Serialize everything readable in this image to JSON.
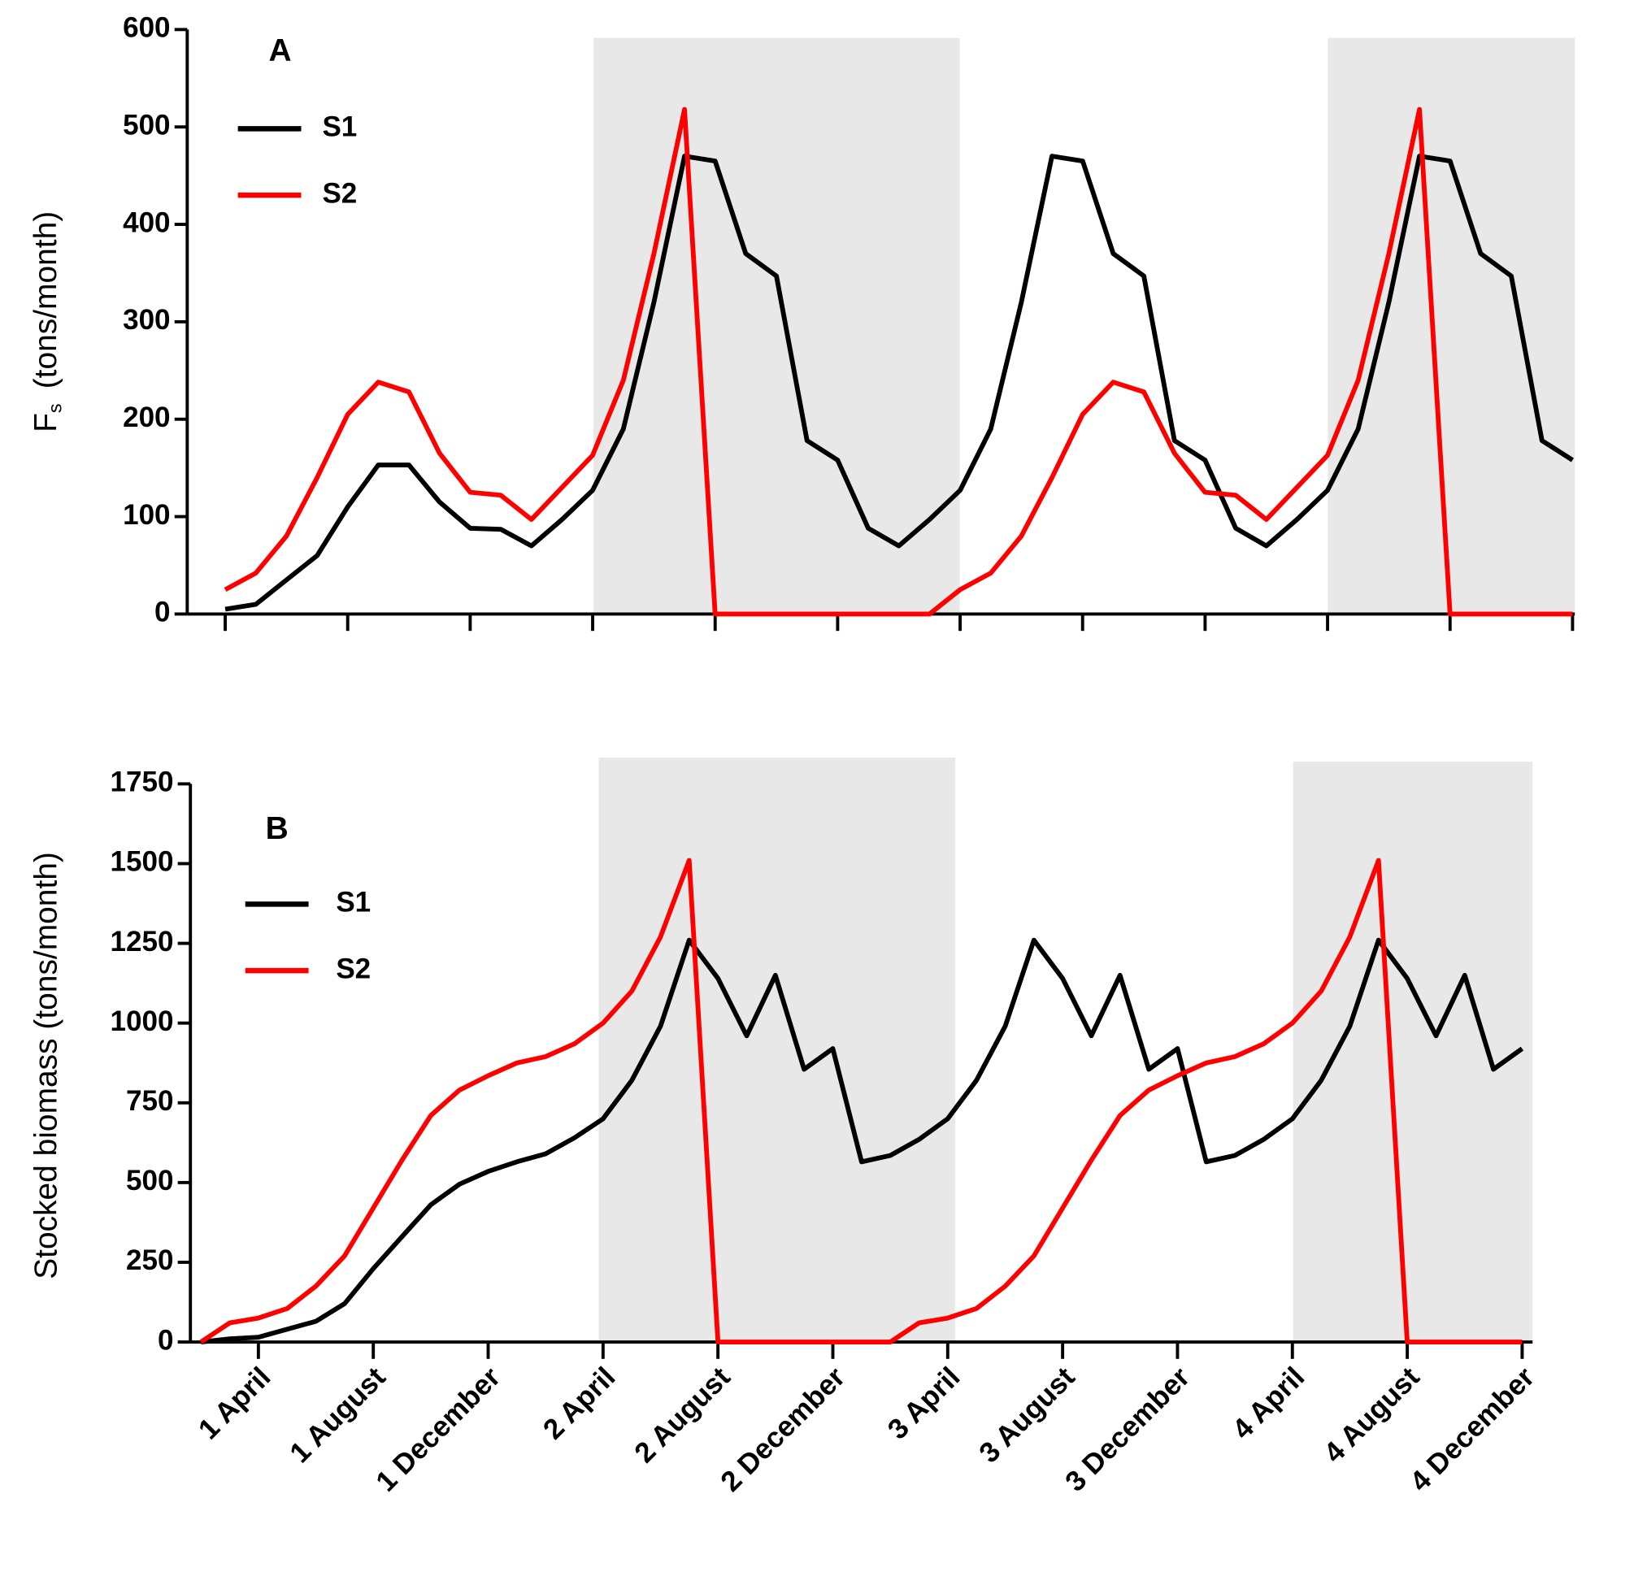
{
  "chart_data": [
    {
      "type": "line",
      "panel": "A",
      "ylabel": "F",
      "ylabel_sub": "s",
      "ylabel_rest": "(tons/month)",
      "ylim": [
        0,
        600
      ],
      "yticks": [
        0,
        100,
        200,
        300,
        400,
        500,
        600
      ],
      "series": [
        {
          "name": "S1",
          "color": "#000000",
          "values": [
            5,
            10,
            35,
            60,
            110,
            153,
            153,
            115,
            88,
            87,
            70,
            97,
            127,
            190,
            320,
            470,
            465,
            370,
            347,
            178,
            158,
            88,
            70,
            97,
            127,
            190,
            320,
            470,
            465,
            370,
            347,
            178,
            158,
            88,
            70,
            97,
            127,
            190,
            320,
            470,
            465,
            370,
            347,
            178,
            158
          ]
        },
        {
          "name": "S2",
          "color": "#ff0000",
          "values": [
            25,
            42,
            80,
            140,
            205,
            238,
            228,
            165,
            125,
            122,
            97,
            130,
            163,
            240,
            370,
            518,
            0,
            0,
            0,
            0,
            0,
            0,
            0,
            0,
            25,
            42,
            80,
            140,
            205,
            238,
            228,
            165,
            125,
            122,
            97,
            130,
            163,
            240,
            370,
            518,
            0,
            0,
            0,
            0,
            0
          ]
        }
      ]
    },
    {
      "type": "line",
      "panel": "B",
      "ylabel": "Stocked biomass (tons/month)",
      "ylim": [
        0,
        1750
      ],
      "yticks": [
        0,
        250,
        500,
        750,
        1000,
        1250,
        1500,
        1750
      ],
      "categories": [
        null,
        null,
        "1 April",
        null,
        null,
        null,
        "1 August",
        null,
        null,
        null,
        "1 December",
        null,
        null,
        null,
        "2 April",
        null,
        null,
        null,
        "2 August",
        null,
        null,
        null,
        "2 December",
        null,
        null,
        null,
        "3 April",
        null,
        null,
        null,
        "3 August",
        null,
        null,
        null,
        "3 December",
        null,
        null,
        null,
        "4 April",
        null,
        null,
        null,
        "4 August",
        null,
        null,
        null,
        "4 December"
      ],
      "series": [
        {
          "name": "S1",
          "color": "#000000",
          "values": [
            0,
            10,
            15,
            40,
            65,
            120,
            230,
            330,
            430,
            495,
            535,
            565,
            590,
            640,
            700,
            820,
            990,
            1260,
            1140,
            960,
            1150,
            855,
            920,
            565,
            585,
            635,
            700,
            820,
            990,
            1260,
            1140,
            960,
            1150,
            855,
            920,
            565,
            585,
            635,
            700,
            820,
            990,
            1260,
            1140,
            960,
            1150,
            855,
            920
          ]
        },
        {
          "name": "S2",
          "color": "#ff0000",
          "values": [
            0,
            60,
            75,
            105,
            175,
            270,
            420,
            570,
            710,
            790,
            835,
            875,
            895,
            935,
            1000,
            1100,
            1270,
            1510,
            0,
            0,
            0,
            0,
            0,
            0,
            0,
            60,
            75,
            105,
            175,
            270,
            420,
            570,
            710,
            790,
            835,
            875,
            895,
            935,
            1000,
            1100,
            1270,
            1510,
            0,
            0,
            0,
            0,
            0
          ]
        }
      ]
    }
  ]
}
